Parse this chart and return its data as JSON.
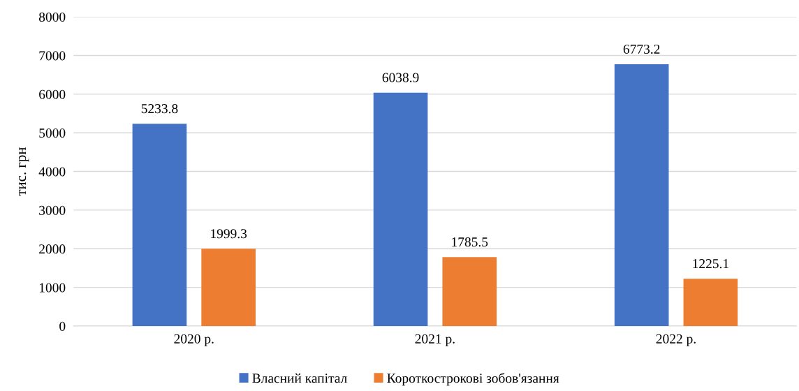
{
  "chart_data": {
    "type": "bar",
    "ylabel": "тис. грн",
    "categories": [
      "2020 р.",
      "2021 р.",
      "2022 р."
    ],
    "series": [
      {
        "name": "Власний капітал",
        "color": "#4472c4",
        "values": [
          5233.8,
          6038.9,
          6773.2
        ]
      },
      {
        "name": "Короткострокові зобов'язання",
        "color": "#ed7d31",
        "values": [
          1999.3,
          1785.5,
          1225.1
        ]
      }
    ],
    "ylim": [
      0,
      8000
    ],
    "yticks": [
      0,
      1000,
      2000,
      3000,
      4000,
      5000,
      6000,
      7000,
      8000
    ],
    "grid": "y",
    "legend": "bottom",
    "data_labels": true
  }
}
